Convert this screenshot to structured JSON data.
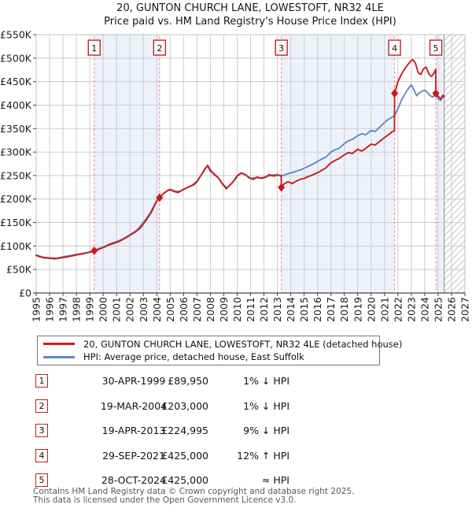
{
  "title": {
    "line1": "20, GUNTON CHURCH LANE, LOWESTOFT, NR32 4LE",
    "line2": "Price paid vs. HM Land Registry's House Price Index (HPI)"
  },
  "colors": {
    "property_line": "#cc1a1a",
    "hpi_line": "#6089bb",
    "sale_marker": "#cc1a1a",
    "sale_dashed_line": "#f08080",
    "sale_box_border": "#c22222",
    "band_fill": "#edf2fa",
    "grid": "#cccccc",
    "frame": "#c0c0c0",
    "axis": "#444444",
    "hatch": "#c4c4c4",
    "hatch_boundary": "#9a9aa6",
    "text": "#1c1c1c",
    "footer_text": "#585858"
  },
  "chart_data": {
    "type": "line",
    "title": "20, GUNTON CHURCH LANE, LOWESTOFT, NR32 4LE — Price paid vs. HPI",
    "x_axis": {
      "min": 1995,
      "max": 2027,
      "tick_years": [
        1995,
        1996,
        1997,
        1998,
        1999,
        2000,
        2001,
        2002,
        2003,
        2004,
        2005,
        2006,
        2007,
        2008,
        2009,
        2010,
        2011,
        2012,
        2013,
        2014,
        2015,
        2016,
        2017,
        2018,
        2019,
        2020,
        2021,
        2022,
        2023,
        2024,
        2025,
        2026,
        2027
      ]
    },
    "y_axis": {
      "min": 0,
      "max": 550000,
      "tick_step": 50000,
      "tick_labels": [
        "£0",
        "£50K",
        "£100K",
        "£150K",
        "£200K",
        "£250K",
        "£300K",
        "£350K",
        "£400K",
        "£450K",
        "£500K",
        "£550K"
      ]
    },
    "grid": true,
    "legend_position": "below",
    "ownership_bands": [
      [
        1999.33,
        2004.21
      ],
      [
        2013.3,
        2021.75
      ],
      [
        2024.83,
        2025.45
      ]
    ],
    "future_hatch": [
      2025.45,
      2027
    ],
    "series": [
      {
        "name": "20, GUNTON CHURCH LANE, LOWESTOFT, NR32 4LE (detached house)",
        "color": "#cc1a1a",
        "points": [
          [
            1995.0,
            80000
          ],
          [
            1995.3,
            77000
          ],
          [
            1995.6,
            75000
          ],
          [
            1996.0,
            74000
          ],
          [
            1996.4,
            73000
          ],
          [
            1996.8,
            74500
          ],
          [
            1997.2,
            76500
          ],
          [
            1997.6,
            78500
          ],
          [
            1998.0,
            81000
          ],
          [
            1998.4,
            83000
          ],
          [
            1998.8,
            85500
          ],
          [
            1999.1,
            87500
          ],
          [
            1999.33,
            89950
          ],
          [
            1999.6,
            92000
          ],
          [
            2000.0,
            97000
          ],
          [
            2000.4,
            102000
          ],
          [
            2000.8,
            106000
          ],
          [
            2001.2,
            110000
          ],
          [
            2001.6,
            116000
          ],
          [
            2002.0,
            123000
          ],
          [
            2002.4,
            130000
          ],
          [
            2002.8,
            139000
          ],
          [
            2003.2,
            155000
          ],
          [
            2003.6,
            172000
          ],
          [
            2004.0,
            196000
          ],
          [
            2004.21,
            203000
          ],
          [
            2004.5,
            212000
          ],
          [
            2004.8,
            218000
          ],
          [
            2005.0,
            220000
          ],
          [
            2005.3,
            216000
          ],
          [
            2005.6,
            214000
          ],
          [
            2006.0,
            221000
          ],
          [
            2006.4,
            226000
          ],
          [
            2006.8,
            231000
          ],
          [
            2007.0,
            237000
          ],
          [
            2007.3,
            250000
          ],
          [
            2007.6,
            265000
          ],
          [
            2007.8,
            271000
          ],
          [
            2008.0,
            260000
          ],
          [
            2008.3,
            252000
          ],
          [
            2008.6,
            245000
          ],
          [
            2008.9,
            232000
          ],
          [
            2009.2,
            222000
          ],
          [
            2009.5,
            231000
          ],
          [
            2009.8,
            240000
          ],
          [
            2010.0,
            249000
          ],
          [
            2010.3,
            255000
          ],
          [
            2010.6,
            252000
          ],
          [
            2010.9,
            245000
          ],
          [
            2011.2,
            242000
          ],
          [
            2011.5,
            247000
          ],
          [
            2011.8,
            244000
          ],
          [
            2012.1,
            246000
          ],
          [
            2012.4,
            252000
          ],
          [
            2012.7,
            249000
          ],
          [
            2013.0,
            251000
          ],
          [
            2013.28,
            250000
          ],
          [
            2013.3,
            224995
          ],
          [
            2013.5,
            232000
          ],
          [
            2013.8,
            237000
          ],
          [
            2014.1,
            233000
          ],
          [
            2014.4,
            238000
          ],
          [
            2014.7,
            242000
          ],
          [
            2015.0,
            244000
          ],
          [
            2015.3,
            248000
          ],
          [
            2015.6,
            251000
          ],
          [
            2016.0,
            256000
          ],
          [
            2016.3,
            261000
          ],
          [
            2016.6,
            266000
          ],
          [
            2017.0,
            277000
          ],
          [
            2017.3,
            282000
          ],
          [
            2017.6,
            286000
          ],
          [
            2018.0,
            294000
          ],
          [
            2018.3,
            299000
          ],
          [
            2018.6,
            297000
          ],
          [
            2019.0,
            306000
          ],
          [
            2019.3,
            302000
          ],
          [
            2019.6,
            308000
          ],
          [
            2020.0,
            317000
          ],
          [
            2020.3,
            315000
          ],
          [
            2020.6,
            322000
          ],
          [
            2021.0,
            331000
          ],
          [
            2021.3,
            337000
          ],
          [
            2021.6,
            344000
          ],
          [
            2021.74,
            345000
          ],
          [
            2021.75,
            425000
          ],
          [
            2022.0,
            450000
          ],
          [
            2022.3,
            468000
          ],
          [
            2022.6,
            481000
          ],
          [
            2022.9,
            492000
          ],
          [
            2023.1,
            497000
          ],
          [
            2023.3,
            490000
          ],
          [
            2023.5,
            470000
          ],
          [
            2023.7,
            465000
          ],
          [
            2023.9,
            477000
          ],
          [
            2024.1,
            481000
          ],
          [
            2024.3,
            467000
          ],
          [
            2024.5,
            461000
          ],
          [
            2024.7,
            468000
          ],
          [
            2024.82,
            476000
          ],
          [
            2024.83,
            425000
          ],
          [
            2025.0,
            419000
          ],
          [
            2025.2,
            413000
          ],
          [
            2025.35,
            421000
          ],
          [
            2025.45,
            417000
          ]
        ]
      },
      {
        "name": "HPI: Average price, detached house, East Suffolk",
        "color": "#6089bb",
        "points": [
          [
            1995.0,
            81000
          ],
          [
            1995.5,
            76500
          ],
          [
            1996.0,
            75000
          ],
          [
            1996.5,
            74000
          ],
          [
            1997.0,
            77000
          ],
          [
            1997.5,
            79500
          ],
          [
            1998.0,
            82000
          ],
          [
            1998.5,
            84500
          ],
          [
            1999.0,
            87000
          ],
          [
            1999.33,
            91000
          ],
          [
            2000.0,
            98000
          ],
          [
            2000.5,
            104500
          ],
          [
            2001.0,
            109500
          ],
          [
            2001.5,
            115500
          ],
          [
            2002.0,
            124000
          ],
          [
            2002.5,
            133500
          ],
          [
            2003.0,
            150000
          ],
          [
            2003.5,
            170000
          ],
          [
            2004.0,
            197000
          ],
          [
            2004.3,
            206000
          ],
          [
            2004.6,
            214000
          ],
          [
            2005.0,
            221000
          ],
          [
            2005.4,
            216500
          ],
          [
            2005.8,
            217000
          ],
          [
            2006.2,
            223500
          ],
          [
            2006.6,
            229000
          ],
          [
            2007.0,
            238000
          ],
          [
            2007.4,
            255000
          ],
          [
            2007.8,
            272000
          ],
          [
            2008.1,
            259000
          ],
          [
            2008.5,
            248000
          ],
          [
            2008.9,
            233500
          ],
          [
            2009.2,
            223500
          ],
          [
            2009.6,
            233000
          ],
          [
            2010.0,
            250000
          ],
          [
            2010.3,
            256000
          ],
          [
            2010.7,
            250500
          ],
          [
            2011.0,
            244000
          ],
          [
            2011.4,
            245500
          ],
          [
            2011.8,
            245000
          ],
          [
            2012.2,
            248000
          ],
          [
            2012.6,
            251000
          ],
          [
            2013.0,
            252000
          ],
          [
            2013.3,
            249000
          ],
          [
            2013.6,
            252000
          ],
          [
            2013.9,
            255000
          ],
          [
            2014.2,
            257000
          ],
          [
            2014.5,
            260000
          ],
          [
            2014.8,
            263000
          ],
          [
            2015.1,
            267000
          ],
          [
            2015.4,
            271000
          ],
          [
            2015.7,
            275000
          ],
          [
            2016.0,
            280000
          ],
          [
            2016.3,
            285000
          ],
          [
            2016.6,
            289000
          ],
          [
            2017.0,
            300000
          ],
          [
            2017.3,
            305000
          ],
          [
            2017.6,
            308000
          ],
          [
            2018.0,
            318000
          ],
          [
            2018.3,
            324000
          ],
          [
            2018.6,
            327000
          ],
          [
            2019.0,
            335000
          ],
          [
            2019.3,
            339000
          ],
          [
            2019.6,
            337000
          ],
          [
            2020.0,
            346000
          ],
          [
            2020.3,
            344000
          ],
          [
            2020.6,
            352000
          ],
          [
            2021.0,
            363000
          ],
          [
            2021.3,
            370000
          ],
          [
            2021.6,
            375000
          ],
          [
            2021.75,
            378000
          ],
          [
            2022.0,
            392000
          ],
          [
            2022.3,
            413000
          ],
          [
            2022.6,
            428000
          ],
          [
            2022.9,
            440000
          ],
          [
            2023.0,
            443000
          ],
          [
            2023.2,
            432000
          ],
          [
            2023.4,
            420000
          ],
          [
            2023.6,
            426000
          ],
          [
            2023.8,
            430000
          ],
          [
            2024.0,
            432000
          ],
          [
            2024.2,
            427000
          ],
          [
            2024.4,
            420000
          ],
          [
            2024.6,
            417000
          ],
          [
            2024.83,
            424000
          ],
          [
            2025.0,
            414000
          ],
          [
            2025.2,
            410000
          ],
          [
            2025.35,
            418000
          ],
          [
            2025.45,
            420000
          ]
        ]
      }
    ],
    "sales": [
      {
        "label": "1",
        "year": 1999.33,
        "price": 89950
      },
      {
        "label": "2",
        "year": 2004.21,
        "price": 203000
      },
      {
        "label": "3",
        "year": 2013.3,
        "price": 224995
      },
      {
        "label": "4",
        "year": 2021.75,
        "price": 425000
      },
      {
        "label": "5",
        "year": 2024.83,
        "price": 425000
      }
    ]
  },
  "legend": {
    "entries": [
      {
        "label": "20, GUNTON CHURCH LANE, LOWESTOFT, NR32 4LE (detached house)",
        "color": "#cc1a1a"
      },
      {
        "label": "HPI: Average price, detached house, East Suffolk",
        "color": "#6089bb"
      }
    ]
  },
  "transactions": {
    "rows": [
      {
        "num": "1",
        "date": "30-APR-1999",
        "price": "£89,950",
        "vs_hpi": "1% ↓ HPI"
      },
      {
        "num": "2",
        "date": "19-MAR-2004",
        "price": "£203,000",
        "vs_hpi": "1% ↓ HPI"
      },
      {
        "num": "3",
        "date": "19-APR-2013",
        "price": "£224,995",
        "vs_hpi": "9% ↓ HPI"
      },
      {
        "num": "4",
        "date": "29-SEP-2021",
        "price": "£425,000",
        "vs_hpi": "12% ↑ HPI"
      },
      {
        "num": "5",
        "date": "28-OCT-2024",
        "price": "£425,000",
        "vs_hpi": "≈ HPI"
      }
    ]
  },
  "footer": {
    "line1": "Contains HM Land Registry data © Crown copyright and database right 2025.",
    "line2": "This data is licensed under the Open Government Licence v3.0."
  }
}
